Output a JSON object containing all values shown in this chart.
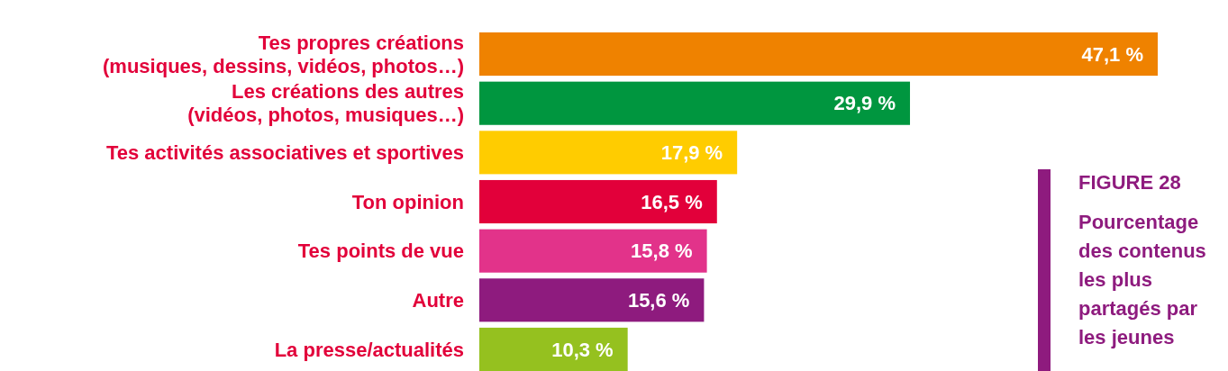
{
  "chart_data": {
    "type": "bar",
    "orientation": "horizontal",
    "title": "FIGURE 28",
    "subtitle": "Pourcentage des contenus les plus partagés par les jeunes",
    "categories": [
      "Tes propres créations\n(musiques, dessins, vidéos, photos…)",
      "Les créations des autres\n(vidéos, photos, musiques…)",
      "Tes activités associatives et sportives",
      "Ton opinion",
      "Tes points de vue",
      "Autre",
      "La presse/actualités"
    ],
    "values": [
      47.1,
      29.9,
      17.9,
      16.5,
      15.8,
      15.6,
      10.3
    ],
    "colors": [
      "#ef8200",
      "#00963f",
      "#ffcc00",
      "#e2003a",
      "#e2338a",
      "#8e1b7e",
      "#95c11f"
    ],
    "value_labels": [
      "47,1 %",
      "29,9 %",
      "17,9 %",
      "16,5 %",
      "15,8 %",
      "15,6 %",
      "10,3 %"
    ]
  }
}
